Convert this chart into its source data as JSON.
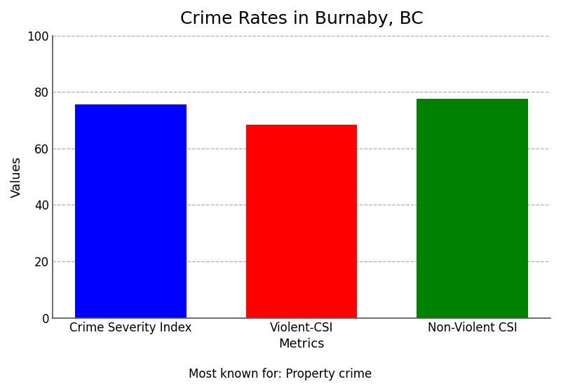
{
  "title": "Crime Rates in Burnaby, BC",
  "categories": [
    "Crime Severity Index",
    "Violent-CSI",
    "Non-Violent CSI"
  ],
  "values": [
    75.5,
    68.5,
    77.5
  ],
  "bar_colors": [
    "#0000ff",
    "#ff0000",
    "#008000"
  ],
  "xlabel": "Metrics",
  "ylabel": "Values",
  "ylim": [
    0,
    100
  ],
  "yticks": [
    0,
    20,
    40,
    60,
    80,
    100
  ],
  "footnote": "Most known for: Property crime",
  "grid_color": "#aaaacc",
  "background_color": "#ffffff",
  "title_fontsize": 18,
  "label_fontsize": 13,
  "tick_fontsize": 12,
  "footnote_fontsize": 12,
  "bar_width": 0.65
}
